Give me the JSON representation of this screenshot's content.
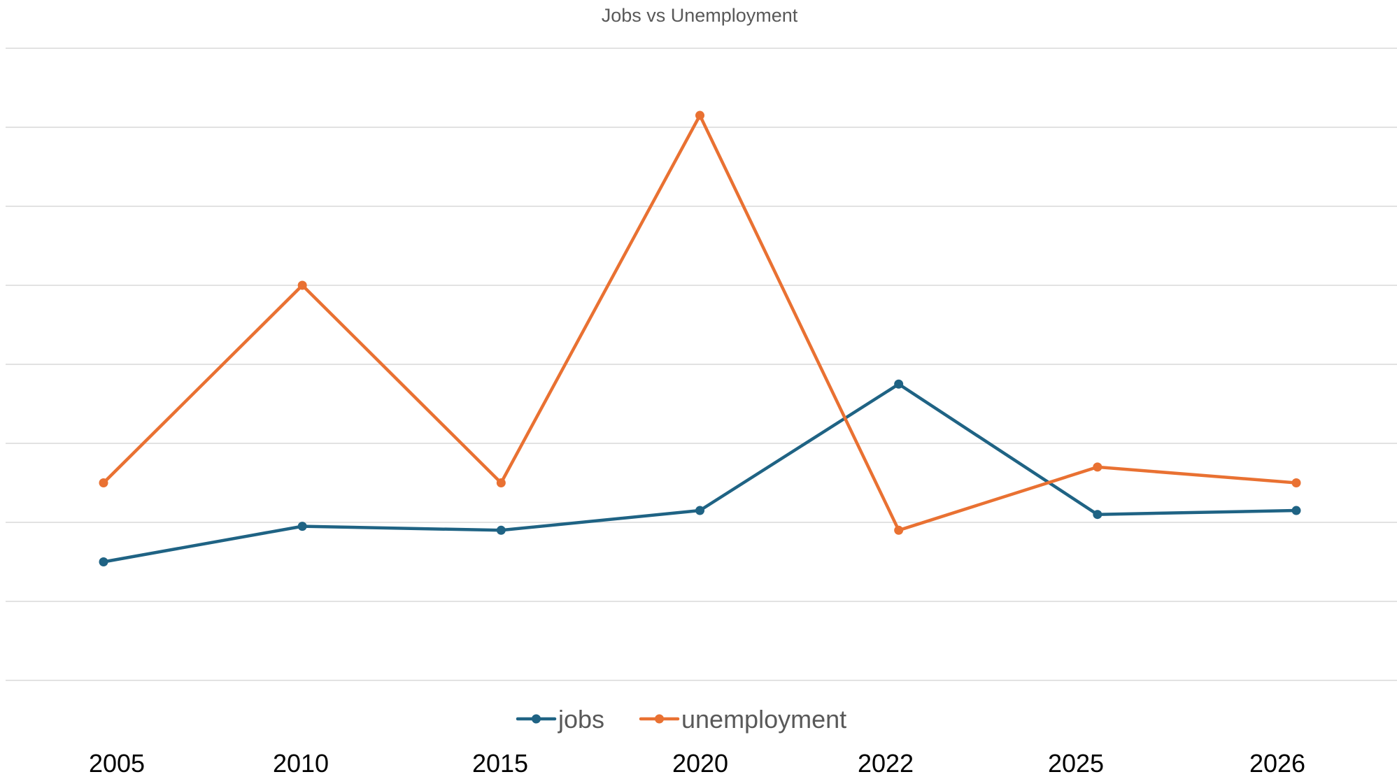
{
  "chart_data": {
    "type": "line",
    "title": "Jobs vs Unemployment",
    "xlabel": "",
    "ylabel": "",
    "categories": [
      "2005",
      "2010",
      "2015",
      "2020",
      "2022",
      "2025",
      "2026"
    ],
    "series": [
      {
        "name": "jobs",
        "color": "#1F6384",
        "values": [
          1.5,
          1.95,
          1.9,
          2.15,
          3.75,
          2.1,
          2.15
        ]
      },
      {
        "name": "unemployment",
        "color": "#E97132",
        "values": [
          2.5,
          5.0,
          2.5,
          7.15,
          1.9,
          2.7,
          2.5
        ]
      }
    ],
    "ylim": [
      0,
      8
    ],
    "y_gridlines": [
      0,
      1,
      2,
      3,
      4,
      5,
      6,
      7,
      8
    ],
    "y_tick_labels_shown": false,
    "grid": "horizontal",
    "legend_position": "bottom"
  }
}
